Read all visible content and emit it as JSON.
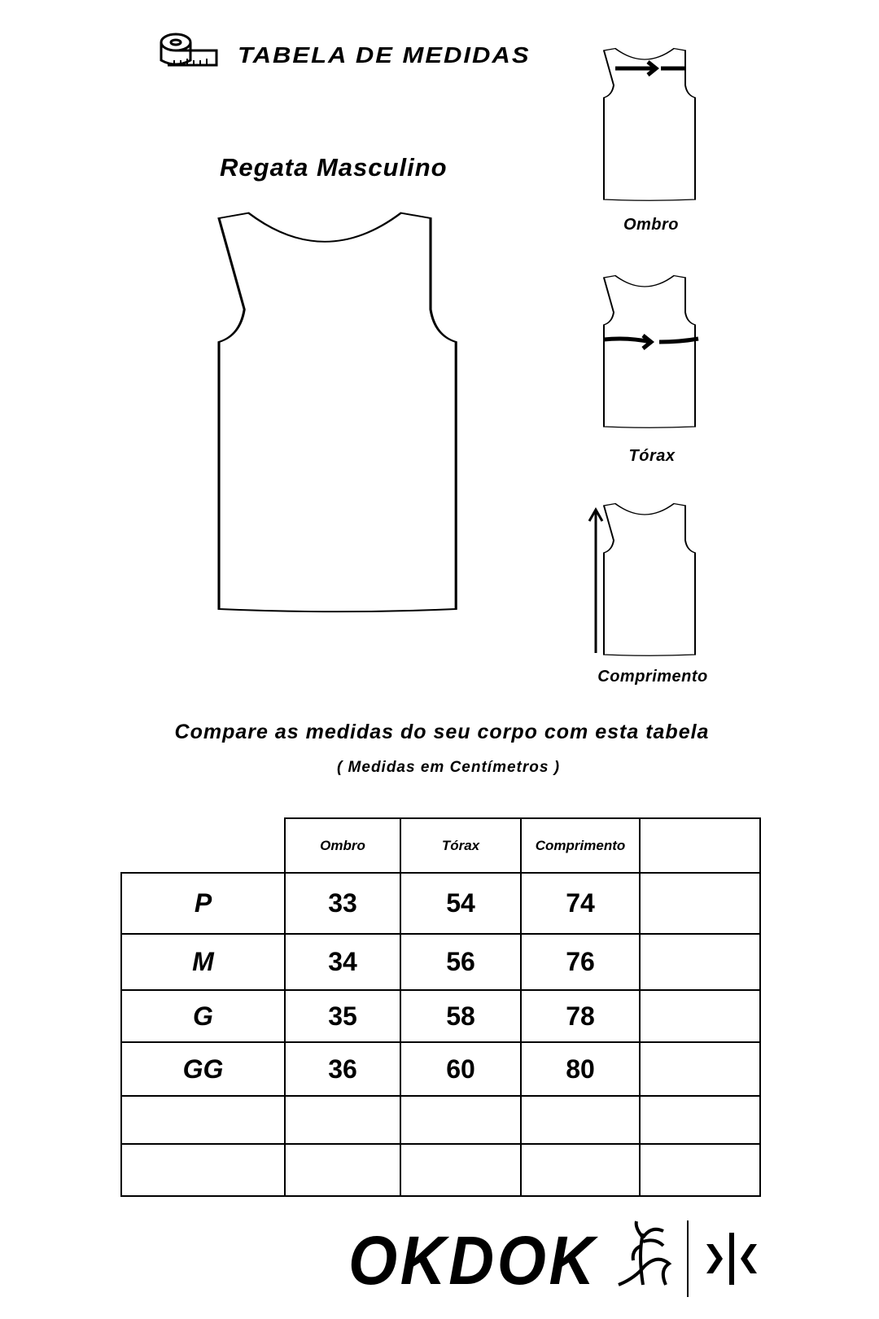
{
  "header": {
    "title": "TABELA DE MEDIDAS",
    "icon": "measuring-tape-icon"
  },
  "product": {
    "name": "Regata Masculino"
  },
  "diagrams": {
    "ombro": "Ombro",
    "torax": "Tórax",
    "comprimento": "Comprimento"
  },
  "instructions": {
    "compare": "Compare as medidas do seu corpo com esta tabela",
    "units": "( Medidas em Centímetros )"
  },
  "table": {
    "columns": [
      "Ombro",
      "Tórax",
      "Comprimento",
      ""
    ],
    "rows": [
      {
        "size": "P",
        "ombro": "33",
        "torax": "54",
        "comprimento": "74"
      },
      {
        "size": "M",
        "ombro": "34",
        "torax": "56",
        "comprimento": "76"
      },
      {
        "size": "G",
        "ombro": "35",
        "torax": "58",
        "comprimento": "78"
      },
      {
        "size": "GG",
        "ombro": "36",
        "torax": "60",
        "comprimento": "80"
      },
      {
        "size": "",
        "ombro": "",
        "torax": "",
        "comprimento": ""
      },
      {
        "size": "",
        "ombro": "",
        "torax": "",
        "comprimento": ""
      }
    ]
  },
  "brand": {
    "logo_text": "OKDOK"
  }
}
